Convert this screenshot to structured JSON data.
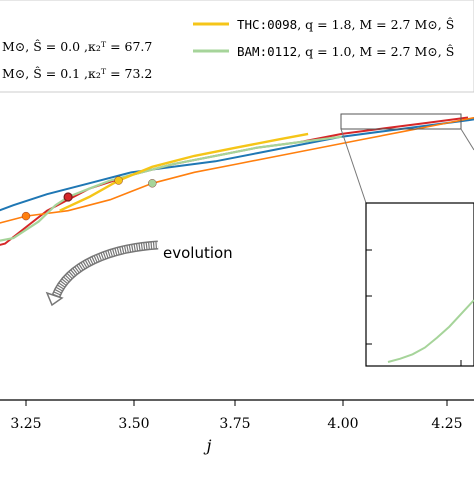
{
  "chart_data": {
    "type": "line",
    "xlabel": "j",
    "xlim": [
      3.15,
      4.4
    ],
    "ylim": [
      0.0,
      1.0
    ],
    "x_ticks": [
      "3.25",
      "3.50",
      "3.75",
      "4.00",
      "4.25"
    ],
    "legend_placement": "top",
    "legend": [
      {
        "text": "M⊙, Ŝ = 0.0 ,κ₂ᵀ = 67.7",
        "color": "#1f77b4"
      },
      {
        "text": "M⊙, Ŝ = 0.1 ,κ₂ᵀ = 73.2",
        "color": "#d62728"
      },
      {
        "code": "THC:0098",
        "text": ", q = 1.8, M = 2.7 M⊙, Ŝ",
        "color": "#f5c518"
      },
      {
        "code": "BAM:0112",
        "text": ", q = 1.0, M = 2.7 M⊙, Ŝ",
        "color": "#a6d49a"
      }
    ],
    "series": [
      {
        "x": [
          3.15,
          3.22,
          3.3,
          3.4,
          3.5,
          3.6,
          3.7,
          3.8,
          3.9,
          4.0,
          4.1,
          4.2,
          4.3,
          4.4
        ],
        "y": [
          0.78,
          0.8,
          0.82,
          0.84,
          0.86,
          0.87,
          0.88,
          0.895,
          0.91,
          0.925,
          0.935,
          0.945,
          0.955,
          0.965
        ]
      },
      {
        "x": [
          3.15,
          3.2,
          3.25,
          3.3,
          3.35,
          3.4,
          3.5,
          3.6,
          3.7,
          3.8,
          3.9,
          4.0,
          4.1,
          4.2,
          4.3
        ],
        "y": [
          0.72,
          0.73,
          0.76,
          0.79,
          0.81,
          0.83,
          0.855,
          0.875,
          0.89,
          0.905,
          0.915,
          0.93,
          0.94,
          0.95,
          0.96
        ]
      },
      {
        "x": [
          3.15,
          3.22,
          3.28,
          3.32,
          3.35,
          3.4,
          3.45,
          3.5,
          3.6,
          3.7,
          3.8,
          3.9,
          4.0
        ],
        "y": [
          0.73,
          0.74,
          0.77,
          0.8,
          0.815,
          0.83,
          0.845,
          0.855,
          0.875,
          0.89,
          0.905,
          0.915,
          0.925
        ]
      },
      {
        "x": [
          3.33,
          3.4,
          3.47,
          3.55,
          3.65,
          3.75,
          3.85,
          3.92
        ],
        "y": [
          0.79,
          0.815,
          0.845,
          0.87,
          0.89,
          0.905,
          0.92,
          0.93
        ]
      },
      {
        "x": [
          3.15,
          3.25,
          3.35,
          3.45,
          3.55,
          3.65,
          3.75,
          3.85,
          3.95,
          4.05,
          4.15,
          4.25,
          4.35,
          4.4
        ],
        "y": [
          0.76,
          0.78,
          0.79,
          0.81,
          0.84,
          0.86,
          0.875,
          0.89,
          0.905,
          0.92,
          0.935,
          0.95,
          0.965,
          0.97
        ]
      }
    ],
    "markers": [
      {
        "x": 3.25,
        "y": 0.78,
        "color": "#ff7f0e"
      },
      {
        "x": 3.35,
        "y": 0.815,
        "color": "#d62728"
      },
      {
        "x": 3.47,
        "y": 0.845,
        "color": "#f5c518"
      },
      {
        "x": 3.55,
        "y": 0.84,
        "color": "#a6d49a"
      }
    ],
    "annotation": "evolution",
    "inset_series": {
      "x": [
        0.0,
        0.1,
        0.2,
        0.3,
        0.4,
        0.5,
        0.6,
        0.7
      ],
      "y": [
        0.0,
        0.03,
        0.07,
        0.13,
        0.22,
        0.32,
        0.44,
        0.56
      ]
    }
  }
}
